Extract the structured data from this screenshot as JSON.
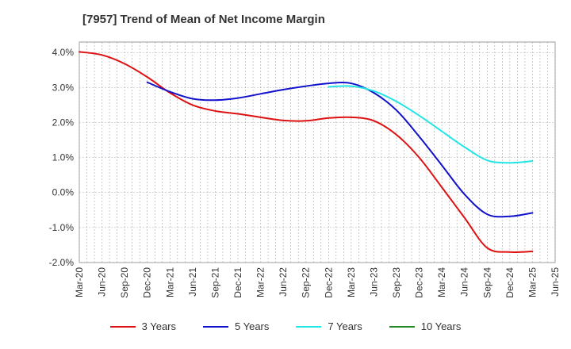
{
  "chart_data": {
    "type": "line",
    "title": "[7957]  Trend of Mean of Net Income Margin",
    "xlabel": "",
    "ylabel": "",
    "x_ticks": [
      "Mar-20",
      "Jun-20",
      "Sep-20",
      "Dec-20",
      "Mar-21",
      "Jun-21",
      "Sep-21",
      "Dec-21",
      "Mar-22",
      "Jun-22",
      "Sep-22",
      "Dec-22",
      "Mar-23",
      "Jun-23",
      "Sep-23",
      "Dec-23",
      "Mar-24",
      "Jun-24",
      "Sep-24",
      "Dec-24",
      "Mar-25",
      "Jun-25"
    ],
    "y_ticks": [
      "4.0%",
      "3.0%",
      "2.0%",
      "1.0%",
      "0.0%",
      "-1.0%",
      "-2.0%"
    ],
    "ylim": [
      -2.0,
      4.3
    ],
    "grid": true,
    "legend_position": "bottom",
    "series": [
      {
        "name": "3 Years",
        "color": "#dd1111",
        "x": [
          "Mar-20",
          "Jun-20",
          "Sep-20",
          "Dec-20",
          "Mar-21",
          "Jun-21",
          "Sep-21",
          "Dec-21",
          "Mar-22",
          "Jun-22",
          "Sep-22",
          "Dec-22",
          "Mar-23",
          "Jun-23",
          "Sep-23",
          "Dec-23",
          "Mar-24",
          "Jun-24",
          "Sep-24",
          "Dec-24",
          "Mar-25"
        ],
        "values": [
          4.02,
          3.93,
          3.68,
          3.3,
          2.85,
          2.5,
          2.33,
          2.25,
          2.15,
          2.06,
          2.05,
          2.13,
          2.15,
          2.05,
          1.65,
          1.0,
          0.15,
          -0.72,
          -1.58,
          -1.7,
          -1.68
        ]
      },
      {
        "name": "5 Years",
        "color": "#1111cc",
        "x": [
          "Dec-20",
          "Mar-21",
          "Jun-21",
          "Sep-21",
          "Dec-21",
          "Mar-22",
          "Jun-22",
          "Sep-22",
          "Dec-22",
          "Mar-23",
          "Jun-23",
          "Sep-23",
          "Dec-23",
          "Mar-24",
          "Jun-24",
          "Sep-24",
          "Dec-24",
          "Mar-25"
        ],
        "values": [
          3.15,
          2.88,
          2.68,
          2.64,
          2.7,
          2.82,
          2.94,
          3.04,
          3.12,
          3.12,
          2.85,
          2.35,
          1.6,
          0.78,
          -0.05,
          -0.62,
          -0.68,
          -0.58
        ]
      },
      {
        "name": "7 Years",
        "color": "#22e5e5",
        "x": [
          "Dec-22",
          "Mar-23",
          "Jun-23",
          "Sep-23",
          "Dec-23",
          "Mar-24",
          "Jun-24",
          "Sep-24",
          "Dec-24",
          "Mar-25"
        ],
        "values": [
          3.02,
          3.04,
          2.9,
          2.6,
          2.2,
          1.75,
          1.3,
          0.92,
          0.85,
          0.9
        ]
      },
      {
        "name": "10 Years",
        "color": "#228822",
        "x": [],
        "values": []
      }
    ]
  }
}
